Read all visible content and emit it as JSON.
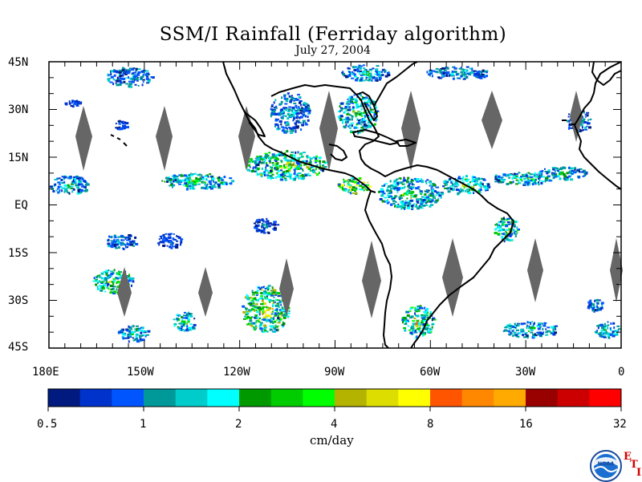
{
  "title": "SSM/I Rainfall (Ferriday algorithm)",
  "subtitle": "July 27, 2004",
  "lat_labels": [
    "45N",
    "30N",
    "15N",
    "EQ",
    "15S",
    "30S",
    "45S"
  ],
  "lon_labels": [
    "180E",
    "150W",
    "120W",
    "90W",
    "60W",
    "30W",
    "0"
  ],
  "colorbar": {
    "units": "cm/day",
    "tick_labels": [
      "0.5",
      "1",
      "2",
      "4",
      "8",
      "16",
      "32"
    ],
    "colors": [
      "#001a80",
      "#0033cc",
      "#0055ff",
      "#009999",
      "#00cccc",
      "#00ffff",
      "#009900",
      "#00cc00",
      "#00ff00",
      "#b3b300",
      "#dddd00",
      "#ffff00",
      "#ff5500",
      "#ff8800",
      "#ffaa00",
      "#990000",
      "#cc0000",
      "#ff0000"
    ]
  },
  "map": {
    "lon_range": [
      -180,
      0
    ],
    "lat_range": [
      -45,
      45
    ],
    "data_gap_color": "#666666",
    "coastline_color": "#000000"
  },
  "logos": {
    "noaa_text": "NOAA",
    "eti_letters": [
      "E",
      "T",
      "I"
    ]
  }
}
